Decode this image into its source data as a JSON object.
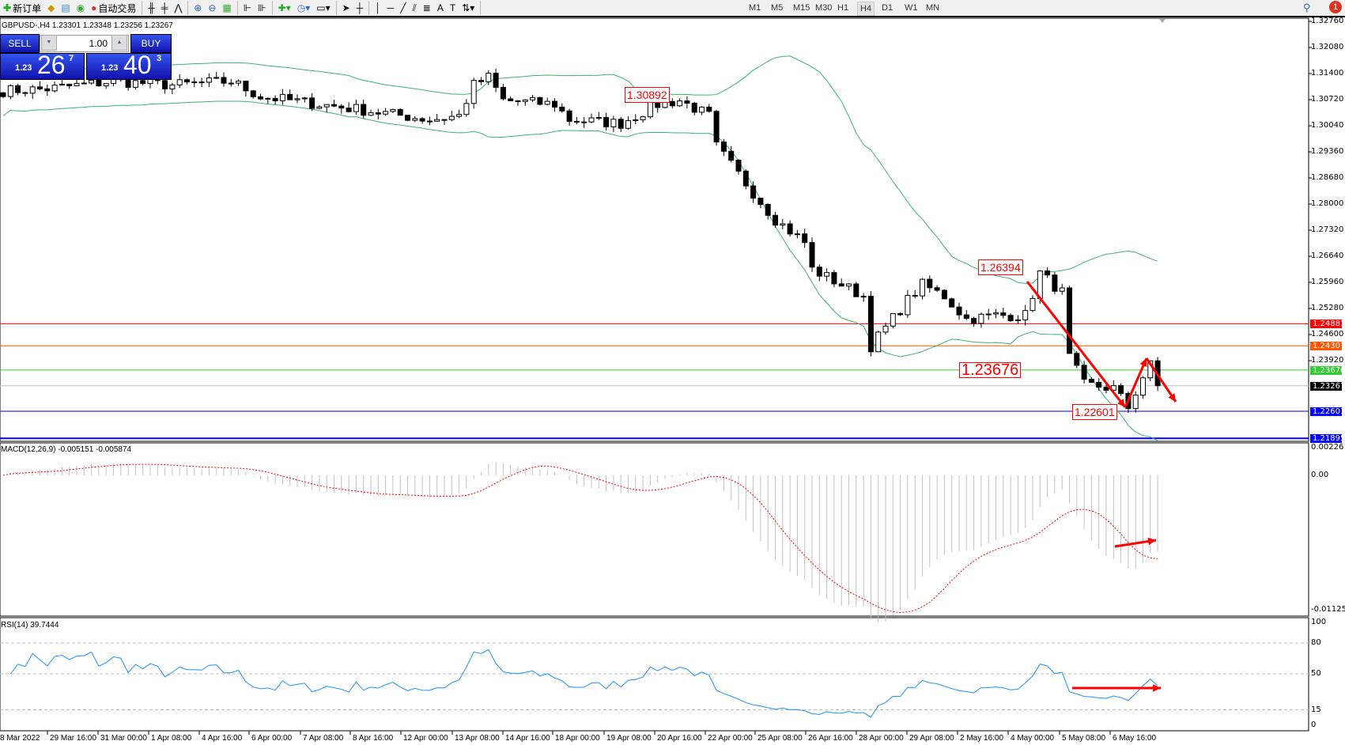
{
  "toolbar": {
    "new_order": "新订单",
    "auto_trade": "自动交易",
    "timeframes": [
      "M1",
      "M5",
      "M15",
      "M30",
      "H1",
      "H4",
      "D1",
      "W1",
      "MN"
    ],
    "active_timeframe": "H4",
    "notification_count": "1"
  },
  "chart": {
    "info": "GBPUSD-,H4  1.23301 1.23348 1.23256 1.23267",
    "symbol": "GBPUSD-",
    "timeframe": "H4"
  },
  "one_click": {
    "sell_label": "SELL",
    "buy_label": "BUY",
    "lot": "1.00",
    "sell_prefix": "1.23",
    "sell_big": "26",
    "sell_sup": "7",
    "buy_prefix": "1.23",
    "buy_big": "40",
    "buy_sup": "3"
  },
  "price_axis": [
    "1.32760",
    "1.32080",
    "1.31400",
    "1.30720",
    "1.30040",
    "1.29360",
    "1.28680",
    "1.28000",
    "1.27320",
    "1.26640",
    "1.25960",
    "1.25280",
    "1.24600",
    "1.23920"
  ],
  "levels": [
    {
      "price": "1.24881",
      "color": "#ff0000"
    },
    {
      "price": "1.24307",
      "color": "#ff5500"
    },
    {
      "price": "1.23676",
      "color": "#33cc33"
    },
    {
      "price": "1.23267",
      "color": "#000000",
      "line": "#c0c0c0"
    },
    {
      "price": "1.22601",
      "color": "#0000ff"
    },
    {
      "price": "1.21895",
      "color": "#0000ff"
    }
  ],
  "annotations": [
    "1.30892",
    "1.26394",
    "1.23676",
    "1.22601"
  ],
  "macd": {
    "label": "MACD(12,26,9) -0.005151 -0.005874",
    "axis": [
      "0.00226",
      "0.00",
      "-0.011252"
    ]
  },
  "rsi": {
    "label": "RSI(14) 39.7444",
    "axis": [
      "100",
      "80",
      "50",
      "15",
      "0"
    ]
  },
  "time_axis": [
    "8 Mar 2022",
    "29 Mar 16:00",
    "31 Mar 00:00",
    "1 Apr 08:00",
    "4 Apr 16:00",
    "6 Apr 00:00",
    "7 Apr 08:00",
    "8 Apr 16:00",
    "12 Apr 00:00",
    "13 Apr 08:00",
    "14 Apr 16:00",
    "18 Apr 00:00",
    "19 Apr 08:00",
    "20 Apr 16:00",
    "22 Apr 00:00",
    "25 Apr 08:00",
    "26 Apr 16:00",
    "28 Apr 00:00",
    "29 Apr 08:00",
    "2 May 16:00",
    "4 May 00:00",
    "5 May 08:00",
    "6 May 16:00"
  ],
  "chart_data": {
    "type": "candlestick",
    "price_range": [
      1.2185,
      1.3276
    ],
    "price_path": [
      [
        0,
        1.3095
      ],
      [
        6,
        1.31
      ],
      [
        15,
        1.312
      ],
      [
        23,
        1.311
      ],
      [
        31,
        1.312
      ],
      [
        35,
        1.308
      ],
      [
        47,
        1.305
      ],
      [
        58,
        1.302
      ],
      [
        62,
        1.303
      ],
      [
        64,
        1.311
      ],
      [
        66,
        1.313
      ],
      [
        68,
        1.307
      ],
      [
        75,
        1.306
      ],
      [
        77,
        1.302
      ],
      [
        84,
        1.301
      ],
      [
        89,
        1.306
      ],
      [
        92,
        1.307
      ],
      [
        96,
        1.303
      ],
      [
        97,
        1.295
      ],
      [
        102,
        1.283
      ],
      [
        105,
        1.276
      ],
      [
        109,
        1.27
      ],
      [
        110,
        1.263
      ],
      [
        117,
        1.256
      ],
      [
        118,
        1.243
      ],
      [
        123,
        1.255
      ],
      [
        125,
        1.259
      ],
      [
        128,
        1.256
      ],
      [
        131,
        1.25
      ],
      [
        135,
        1.251
      ],
      [
        139,
        1.251
      ],
      [
        141,
        1.262
      ],
      [
        144,
        1.257
      ],
      [
        145,
        1.24
      ],
      [
        147,
        1.233
      ],
      [
        151,
        1.232
      ],
      [
        153,
        1.227
      ],
      [
        155,
        1.235
      ],
      [
        156,
        1.238
      ],
      [
        157,
        1.23267
      ]
    ],
    "colors": {
      "bands": "#3cb371",
      "macd_hist": "#c0c0c0",
      "macd_signal": "#ff0000",
      "rsi": "#1e90ff",
      "arrows": "#ff0000"
    }
  }
}
